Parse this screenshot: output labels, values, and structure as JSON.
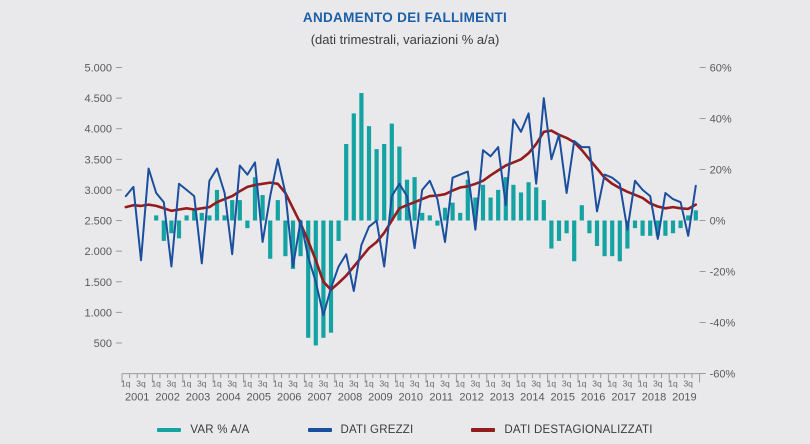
{
  "title": "ANDAMENTO DEI FALLIMENTI",
  "subtitle": "(dati trimestrali, variazioni % a/a)",
  "legend": [
    {
      "label": "VAR % A/A",
      "color": "#14a2a2"
    },
    {
      "label": "DATI GREZZI",
      "color": "#1b4f9e"
    },
    {
      "label": "DATI DESTAGIONALIZZATI",
      "color": "#941c1e"
    }
  ],
  "colors": {
    "background": "#e9e9eb",
    "title": "#1a5fa8",
    "axis_line": "#9a9a9a",
    "tick_text": "#5a5a5a",
    "bar": "#14a2a2",
    "line_raw": "#1b4f9e",
    "line_seasonal": "#941c1e"
  },
  "chart_data": {
    "type": "bar+line combo",
    "x_unit": "quarter",
    "years": [
      "2001",
      "2002",
      "2003",
      "2004",
      "2005",
      "2006",
      "2007",
      "2008",
      "2009",
      "2010",
      "2011",
      "2012",
      "2013",
      "2014",
      "2015",
      "2016",
      "2017",
      "2018",
      "2019"
    ],
    "quarter_tick_labels": [
      "1q",
      "3q"
    ],
    "left_axis": {
      "tick_labels": [
        "5.000",
        "4.500",
        "4.000",
        "3.500",
        "3.000",
        "2.500",
        "2.000",
        "1.500",
        "1.000",
        "500"
      ],
      "tick_values": [
        5000,
        4500,
        4000,
        3500,
        3000,
        2500,
        2000,
        1500,
        1000,
        500
      ],
      "range": [
        0,
        5000
      ]
    },
    "right_axis": {
      "tick_labels": [
        "60%",
        "40%",
        "20%",
        "0%",
        "-20%",
        "-40%",
        "-60%"
      ],
      "tick_values": [
        60,
        40,
        20,
        0,
        -20,
        -40,
        -60
      ],
      "range": [
        -60,
        60
      ]
    },
    "series": [
      {
        "name": "DATI GREZZI",
        "type": "line",
        "axis": "left",
        "values": [
          2900,
          3050,
          1850,
          3350,
          2950,
          2800,
          1750,
          3100,
          3000,
          2900,
          1800,
          3150,
          3350,
          2950,
          1950,
          3400,
          3250,
          3450,
          2150,
          2900,
          3500,
          2950,
          1750,
          2500,
          1900,
          1500,
          950,
          1400,
          1750,
          1950,
          1350,
          2100,
          2400,
          2500,
          1750,
          2900,
          3100,
          2900,
          2050,
          3000,
          3150,
          2850,
          2150,
          3200,
          3250,
          3300,
          2350,
          3650,
          3550,
          3700,
          2750,
          4150,
          3950,
          4250,
          3100,
          4500,
          3500,
          3900,
          2950,
          3800,
          3700,
          3700,
          2650,
          3250,
          3200,
          3100,
          2350,
          3150,
          3000,
          2900,
          2200,
          2950,
          2850,
          2800,
          2250,
          3070
        ]
      },
      {
        "name": "DATI DESTAGIONALIZZATI",
        "type": "line",
        "axis": "left",
        "values": [
          2720,
          2750,
          2740,
          2760,
          2740,
          2700,
          2660,
          2680,
          2700,
          2680,
          2700,
          2720,
          2800,
          2850,
          2900,
          2980,
          3050,
          3080,
          3100,
          3120,
          3100,
          2950,
          2700,
          2450,
          2170,
          1850,
          1500,
          1370,
          1480,
          1600,
          1750,
          1900,
          2050,
          2150,
          2300,
          2500,
          2700,
          2750,
          2800,
          2850,
          2900,
          2910,
          2930,
          2990,
          3040,
          3060,
          3100,
          3150,
          3240,
          3320,
          3400,
          3450,
          3500,
          3600,
          3750,
          3950,
          3970,
          3900,
          3850,
          3780,
          3650,
          3500,
          3350,
          3200,
          3100,
          3030,
          2970,
          2920,
          2870,
          2780,
          2730,
          2700,
          2720,
          2700,
          2690,
          2760
        ]
      },
      {
        "name": "VAR % A/A",
        "type": "bar",
        "axis": "right",
        "definition": "year-over-year % change of DATI GREZZI, first bar at 1q 2002",
        "start_index": 4,
        "values": [
          2,
          -8,
          -5,
          -7,
          2,
          4,
          3,
          2,
          12,
          2,
          8,
          8,
          -3,
          17,
          10,
          -15,
          8,
          -14,
          -19,
          -14,
          -46,
          -49,
          -46,
          -44,
          -8,
          30,
          42,
          50,
          37,
          28,
          30,
          38,
          29,
          16,
          17,
          3,
          2,
          -2,
          5,
          7,
          3,
          16,
          9,
          14,
          9,
          12,
          17,
          14,
          11,
          15,
          13,
          8,
          -11,
          -8,
          -5,
          -16,
          6,
          -5,
          -10,
          -14,
          -14,
          -16,
          -11,
          -3,
          -6,
          -6,
          -6,
          -6,
          -5,
          -3,
          2,
          4
        ]
      }
    ]
  }
}
